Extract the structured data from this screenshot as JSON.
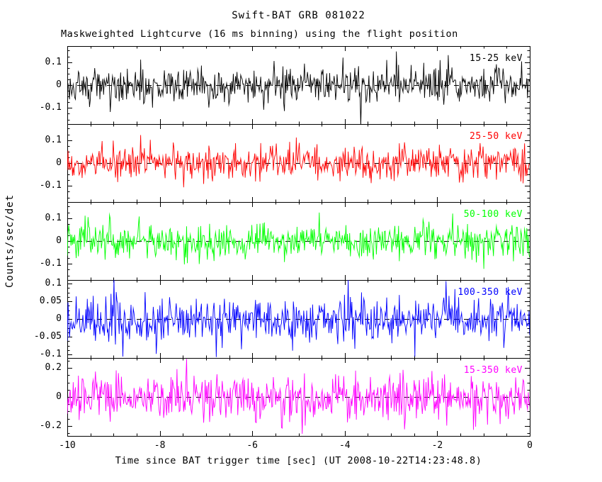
{
  "chart_data": {
    "type": "line",
    "title": "Swift-BAT GRB 081022",
    "subtitle": "Maskweighted Lightcurve (16 ms binning) using the flight position",
    "xlabel": "Time since BAT trigger time [sec] (UT 2008-10-22T14:23:48.8)",
    "ylabel": "Counts/sec/det",
    "xlim": [
      -10,
      0
    ],
    "xticks": [
      -10,
      -8,
      -6,
      -4,
      -2,
      0
    ],
    "xtick_labels": [
      "-10",
      "-8",
      "-6",
      "-4",
      "-2",
      "0"
    ],
    "bin_seconds": 0.016,
    "duration_seconds": 10,
    "grid": false,
    "zero_line_dashed": true,
    "series_note": "Mask-weighted count-rate noise fluctuating about zero in all five energy bands; no burst structure visible in this window.",
    "panels": [
      {
        "label": "15-25 keV",
        "color": "#000000",
        "ylim": [
          -0.17,
          0.17
        ],
        "yticks": [
          0.1,
          0,
          -0.1
        ],
        "ytick_labels": [
          "0.1",
          "0",
          "-0.1"
        ],
        "mean": 0,
        "noise_sigma": 0.038
      },
      {
        "label": "25-50 keV",
        "color": "#ff0000",
        "ylim": [
          -0.17,
          0.17
        ],
        "yticks": [
          0.1,
          0,
          -0.1
        ],
        "ytick_labels": [
          "0.1",
          "0",
          "-0.1"
        ],
        "mean": 0,
        "noise_sigma": 0.038
      },
      {
        "label": "50-100 keV",
        "color": "#00ff00",
        "ylim": [
          -0.17,
          0.17
        ],
        "yticks": [
          0.1,
          0,
          -0.1
        ],
        "ytick_labels": [
          "0.1",
          "0",
          "-0.1"
        ],
        "mean": 0,
        "noise_sigma": 0.038
      },
      {
        "label": "100-350 keV",
        "color": "#0000ff",
        "ylim": [
          -0.11,
          0.11
        ],
        "yticks": [
          0.1,
          0.05,
          0,
          -0.05,
          -0.1
        ],
        "ytick_labels": [
          "0.1",
          "0.05",
          "0",
          "-0.05",
          "-0.1"
        ],
        "mean": 0,
        "noise_sigma": 0.032
      },
      {
        "label": "15-350 keV",
        "color": "#ff00ff",
        "ylim": [
          -0.27,
          0.27
        ],
        "yticks": [
          0.2,
          0,
          -0.2
        ],
        "ytick_labels": [
          "0.2",
          "0",
          "-0.2"
        ],
        "mean": 0,
        "noise_sigma": 0.075
      }
    ]
  }
}
